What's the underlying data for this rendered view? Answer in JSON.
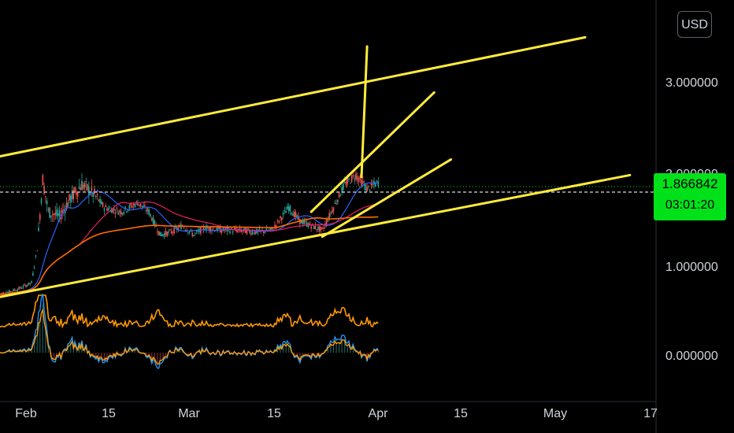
{
  "currency_button": "USD",
  "price_tag": {
    "price": "1.866842",
    "countdown": "03:01:20"
  },
  "colors": {
    "background": "#000000",
    "trendline": "#ffeb3b",
    "last_price": "#00e11a",
    "candle_up": "#26a69a",
    "candle_down": "#ef5350",
    "ma_fast": "#2962ff",
    "ma_mid": "#e91e63",
    "ma_slow": "#ff6d00",
    "osc_line": "#ff9800",
    "macd_line": "#2196f3",
    "signal_line": "#ff9800"
  },
  "chart_data": {
    "type": "line",
    "y_axis": {
      "ticks": [
        "3.000000",
        "2.000000",
        "1.000000",
        "0.000000"
      ],
      "range": [
        -0.35,
        3.6
      ]
    },
    "x_axis": {
      "ticks": [
        "Feb",
        "15",
        "Mar",
        "15",
        "Apr",
        "15",
        "May",
        "17"
      ]
    },
    "last_price": 1.866842,
    "price_series": {
      "name": "",
      "points": [
        [
          "Jan 27",
          0.65
        ],
        [
          "Jan 29",
          0.68
        ],
        [
          "Jan 31",
          0.72
        ],
        [
          "Feb 2",
          0.78
        ],
        [
          "Feb 3",
          1.15
        ],
        [
          "Feb 4",
          1.9
        ],
        [
          "Feb 5",
          1.55
        ],
        [
          "Feb 7",
          1.5
        ],
        [
          "Feb 9",
          1.7
        ],
        [
          "Feb 11",
          1.85
        ],
        [
          "Feb 13",
          1.75
        ],
        [
          "Feb 15",
          1.6
        ],
        [
          "Feb 18",
          1.55
        ],
        [
          "Feb 21",
          1.65
        ],
        [
          "Feb 23",
          1.55
        ],
        [
          "Feb 25",
          1.3
        ],
        [
          "Feb 27",
          1.33
        ],
        [
          "Mar 1",
          1.4
        ],
        [
          "Mar 3",
          1.3
        ],
        [
          "Mar 5",
          1.38
        ],
        [
          "Mar 8",
          1.35
        ],
        [
          "Mar 11",
          1.35
        ],
        [
          "Mar 14",
          1.33
        ],
        [
          "Mar 17",
          1.35
        ],
        [
          "Mar 20",
          1.6
        ],
        [
          "Mar 22",
          1.45
        ],
        [
          "Mar 24",
          1.4
        ],
        [
          "Mar 26",
          1.35
        ],
        [
          "Mar 28",
          1.6
        ],
        [
          "Mar 30",
          1.85
        ],
        [
          "Apr 1",
          1.95
        ],
        [
          "Apr 3",
          1.8
        ],
        [
          "Apr 5",
          1.87
        ]
      ]
    },
    "trendlines": [
      {
        "from": [
          "Jan 27",
          2.15
        ],
        "to": [
          "May 12",
          3.45
        ]
      },
      {
        "from": [
          "Jan 27",
          0.62
        ],
        "to": [
          "May 20",
          1.95
        ]
      },
      {
        "from": [
          "Mar 24",
          1.55
        ],
        "to": [
          "Apr 15",
          2.85
        ]
      },
      {
        "from": [
          "Mar 26",
          1.28
        ],
        "to": [
          "Apr 18",
          2.12
        ]
      },
      {
        "from": [
          "Apr 2",
          1.93
        ],
        "to": [
          "Apr 3",
          3.35
        ]
      }
    ]
  }
}
